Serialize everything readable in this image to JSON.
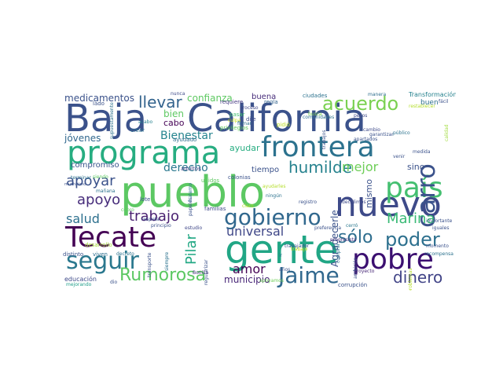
{
  "words": [
    {
      "text": "pueblo",
      "color": "#5cc863"
    },
    {
      "text": "Baja",
      "color": "#3b528b"
    },
    {
      "text": "California",
      "color": "#3b528b"
    },
    {
      "text": "gente",
      "color": "#21a685"
    },
    {
      "text": "programa",
      "color": "#27ad81"
    },
    {
      "text": "frontera",
      "color": "#2c728e"
    },
    {
      "text": "nuevo",
      "color": "#3e4a89"
    },
    {
      "text": "país",
      "color": "#44bf70"
    },
    {
      "text": "Tecate",
      "color": "#440154"
    },
    {
      "text": "seguir",
      "color": "#2a788e"
    },
    {
      "text": "pobre",
      "color": "#3b0f70"
    },
    {
      "text": "gobierno",
      "color": "#31688e"
    },
    {
      "text": "carro",
      "color": "#3b528b"
    },
    {
      "text": "Jaime",
      "color": "#31688e"
    },
    {
      "text": "acuerdo",
      "color": "#7ad151"
    },
    {
      "text": "Rumorosa",
      "color": "#5cc863"
    },
    {
      "text": "poder",
      "color": "#2d708e"
    },
    {
      "text": "dinero",
      "color": "#414487"
    },
    {
      "text": "llevar",
      "color": "#33638d"
    },
    {
      "text": "humilde",
      "color": "#26828e"
    },
    {
      "text": "sólo",
      "color": "#2e6e8e"
    },
    {
      "text": "apoyar",
      "color": "#3b528b"
    },
    {
      "text": "apoyo",
      "color": "#472d7b"
    },
    {
      "text": "trabajo",
      "color": "#481f70"
    },
    {
      "text": "salud",
      "color": "#2d708e"
    },
    {
      "text": "Marina",
      "color": "#3aba76"
    },
    {
      "text": "Pilar",
      "color": "#22a884"
    },
    {
      "text": "universal",
      "color": "#3f4788"
    },
    {
      "text": "amor",
      "color": "#440154"
    },
    {
      "text": "mejor",
      "color": "#6ece58"
    },
    {
      "text": "Bienestar",
      "color": "#25848e"
    },
    {
      "text": "derecho",
      "color": "#2a788e"
    },
    {
      "text": "medicamentos",
      "color": "#3b528b"
    },
    {
      "text": "confianza",
      "color": "#5ec962"
    },
    {
      "text": "buena",
      "color": "#472c7a"
    },
    {
      "text": "Agradecerle",
      "color": "#3b528b"
    },
    {
      "text": "municipio",
      "color": "#482677"
    },
    {
      "text": "compromiso",
      "color": "#3a548c"
    },
    {
      "text": "jóvenes",
      "color": "#31688e"
    },
    {
      "text": "bien",
      "color": "#5ec962"
    },
    {
      "text": "cabo",
      "color": "#440154"
    },
    {
      "text": "mismo",
      "color": "#3b528b"
    },
    {
      "text": "ayudar",
      "color": "#27ad81"
    },
    {
      "text": "sino",
      "color": "#3b528b"
    },
    {
      "text": "tiempo",
      "color": "#3b528b"
    },
    {
      "text": "Transformación",
      "color": "#26828e"
    },
    {
      "text": "buen",
      "color": "#2d708e"
    },
    {
      "text": "ciudades",
      "color": "#2c728e"
    },
    {
      "text": "nunca",
      "color": "#3e4a89"
    },
    {
      "text": "manera",
      "color": "#2e6e8e"
    },
    {
      "text": "requiere",
      "color": "#453882"
    },
    {
      "text": "regla",
      "color": "#33638d"
    },
    {
      "text": "pidió",
      "color": "#bddf26"
    },
    {
      "text": "dije",
      "color": "#3e4a89"
    },
    {
      "text": "culpa",
      "color": "#cae11f"
    },
    {
      "text": "pasar",
      "color": "#44bf70"
    },
    {
      "text": "privilegios",
      "color": "#63cb5f"
    },
    {
      "text": "crear",
      "color": "#2c728e"
    },
    {
      "text": "acabo",
      "color": "#26828e"
    },
    {
      "text": "ayudado",
      "color": "#2e6e8e"
    },
    {
      "text": "adultos",
      "color": "#414487"
    },
    {
      "text": "colonias",
      "color": "#3b528b"
    },
    {
      "text": "familias",
      "color": "#3e4a89"
    },
    {
      "text": "lote",
      "color": "#3b528b"
    },
    {
      "text": "mañana",
      "color": "#2c728e"
    },
    {
      "text": "siendo",
      "color": "#5ec962"
    },
    {
      "text": "terminar",
      "color": "#2c728e"
    },
    {
      "text": "desarrollo",
      "color": "#a2da37"
    },
    {
      "text": "viven",
      "color": "#2e6e8e"
    },
    {
      "text": "distinto",
      "color": "#3b528b"
    },
    {
      "text": "educación",
      "color": "#3e4a89"
    },
    {
      "text": "mejorando",
      "color": "#1f9e89"
    },
    {
      "text": "dio",
      "color": "#3b528b"
    },
    {
      "text": "Bonilla",
      "color": "#46327e"
    },
    {
      "text": "años",
      "color": "#3b528b"
    },
    {
      "text": "corrupción",
      "color": "#3b528b"
    },
    {
      "text": "proyecto",
      "color": "#482878"
    },
    {
      "text": "comunidades",
      "color": "#2d708e"
    },
    {
      "text": "firmar",
      "color": "#2c728e"
    },
    {
      "text": "proceso",
      "color": "#3f4788"
    },
    {
      "text": "registro",
      "color": "#3b528b"
    },
    {
      "text": "cerró",
      "color": "#2a788e"
    },
    {
      "text": "estudio",
      "color": "#3f4788"
    },
    {
      "text": "principio",
      "color": "#3b528b"
    },
    {
      "text": "respeta",
      "color": "#3b528b"
    },
    {
      "text": "ningún",
      "color": "#2c728e"
    },
    {
      "text": "trabajador",
      "color": "#3b528b"
    },
    {
      "text": "preferencia",
      "color": "#3b528b"
    },
    {
      "text": "progresista",
      "color": "#46327e"
    },
    {
      "text": "decidimos",
      "color": "#3e4a89"
    },
    {
      "text": "recompensa",
      "color": "#2c728e"
    },
    {
      "text": "momento",
      "color": "#3b528b"
    },
    {
      "text": "importante",
      "color": "#3b528b"
    },
    {
      "text": "iguales",
      "color": "#3b528b"
    },
    {
      "text": "garantizar",
      "color": "#3b528b"
    },
    {
      "text": "apartados",
      "color": "#3b528b"
    },
    {
      "text": "público",
      "color": "#2c728e"
    },
    {
      "text": "cambio",
      "color": "#3e4a89"
    },
    {
      "text": "medida",
      "color": "#3b528b"
    },
    {
      "text": "venir",
      "color": "#3b528b"
    },
    {
      "text": "fácil",
      "color": "#3b528b"
    },
    {
      "text": "restablecer",
      "color": "#b5de2b"
    },
    {
      "text": "busca",
      "color": "#7ad151"
    },
    {
      "text": "pesos",
      "color": "#3e4a89"
    },
    {
      "text": "unidos",
      "color": "#5ec962"
    },
    {
      "text": "fraterno",
      "color": "#2c728e"
    },
    {
      "text": "papeles",
      "color": "#3b528b"
    },
    {
      "text": "transporte",
      "color": "#3b528b"
    },
    {
      "text": "decreto",
      "color": "#2c728e"
    },
    {
      "text": "supuestamente",
      "color": "#2c728e"
    },
    {
      "text": "lado",
      "color": "#3b528b"
    },
    {
      "text": "muchísimo",
      "color": "#3b528b"
    },
    {
      "text": "cobro",
      "color": "#5ec962"
    },
    {
      "text": "ayudarles",
      "color": "#b5de2b"
    },
    {
      "text": "trabajo",
      "color": "#c8e020"
    },
    {
      "text": "apoyamos",
      "color": "#6ece58"
    },
    {
      "text": "ambición",
      "color": "#3b528b"
    },
    {
      "text": "regularizar",
      "color": "#3b528b"
    },
    {
      "text": "siempre",
      "color": "#2c728e"
    },
    {
      "text": "ir",
      "color": "#2c728e"
    },
    {
      "text": "comprar",
      "color": "#2c728e"
    },
    {
      "text": "problemas",
      "color": "#b5de2b"
    },
    {
      "text": "claro",
      "color": "#b5de2b"
    },
    {
      "text": "trabajos",
      "color": "#3b528b"
    },
    {
      "text": "calidad",
      "color": "#9fda3a"
    }
  ]
}
